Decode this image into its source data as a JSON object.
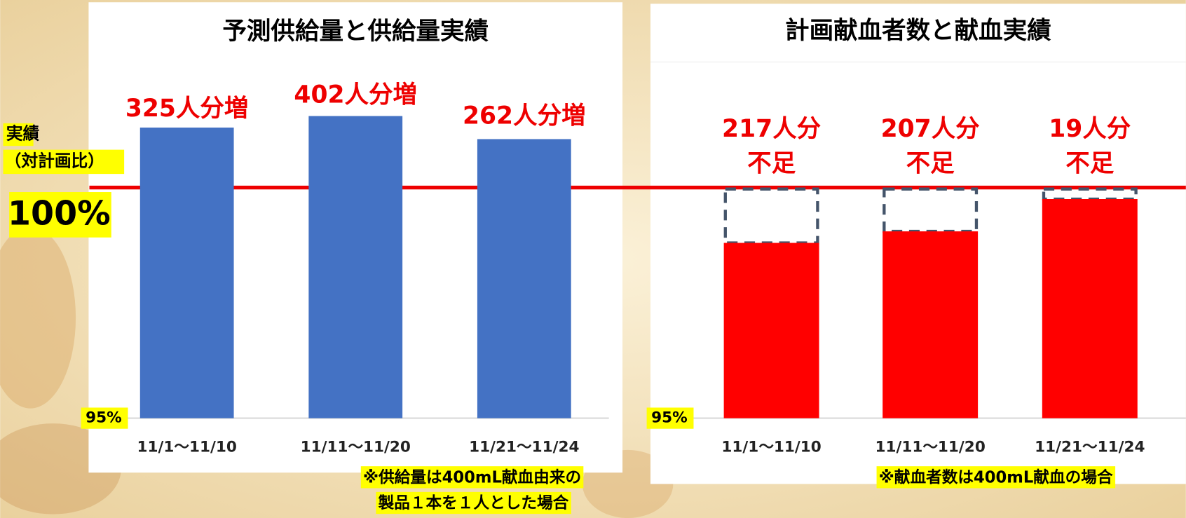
{
  "chart_data": [
    {
      "type": "bar",
      "title": "予測供給量と供給量実績",
      "categories": [
        "11/1～11/10",
        "11/11～11/20",
        "11/21～11/24"
      ],
      "values": [
        101.3,
        101.55,
        101.05
      ],
      "color": "#4472c4",
      "annotations": [
        [
          "325人分増"
        ],
        [
          "402人分増"
        ],
        [
          "262人分増"
        ]
      ],
      "ylim": [
        95,
        102
      ],
      "yticks": [
        {
          "value": 95,
          "label": "95%"
        },
        {
          "value": 100,
          "label": "100%"
        }
      ],
      "reference_color": "#ee0000",
      "axis_label": "実績",
      "axis_sublabel": "（対計画比）",
      "note": [
        "※供給量は400mL献血由来の",
        "製品１本を１人とした場合"
      ]
    },
    {
      "type": "bar",
      "title": "計画献血者数と献血実績",
      "categories": [
        "11/1～11/10",
        "11/11～11/20",
        "11/21～11/24"
      ],
      "values": [
        98.8,
        99.05,
        99.75
      ],
      "color": "#ff0000",
      "target": 100,
      "target_color": "#44546a",
      "annotations": [
        [
          "217人分",
          "不足"
        ],
        [
          "207人分",
          "不足"
        ],
        [
          "19人分",
          "不足"
        ]
      ],
      "ylim": [
        95,
        102
      ],
      "yticks": [
        {
          "value": 95,
          "label": "95%"
        }
      ],
      "note": [
        "※献血者数は400mL献血の場合"
      ]
    }
  ]
}
